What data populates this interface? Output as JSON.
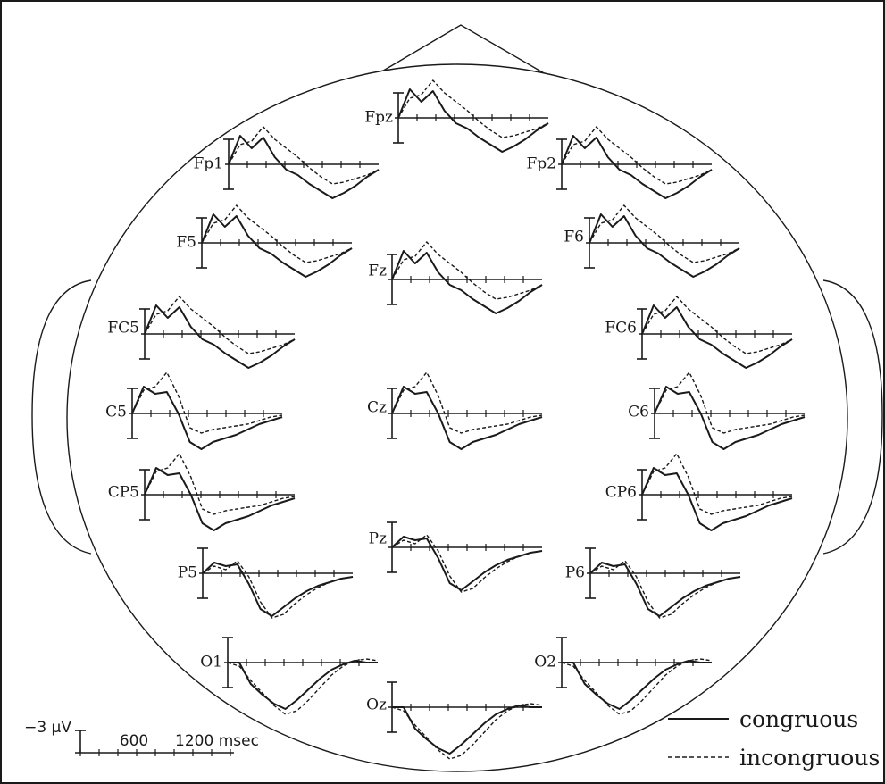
{
  "electrodes": [
    {
      "id": "Fpz",
      "label": "Fpz"
    },
    {
      "id": "Fp1",
      "label": "Fp1"
    },
    {
      "id": "Fp2",
      "label": "Fp2"
    },
    {
      "id": "F5",
      "label": "F5"
    },
    {
      "id": "Fz",
      "label": "Fz"
    },
    {
      "id": "F6",
      "label": "F6"
    },
    {
      "id": "FC5",
      "label": "FC5"
    },
    {
      "id": "FC6",
      "label": "FC6"
    },
    {
      "id": "C5",
      "label": "C5"
    },
    {
      "id": "Cz",
      "label": "Cz"
    },
    {
      "id": "C6",
      "label": "C6"
    },
    {
      "id": "CP5",
      "label": "CP5"
    },
    {
      "id": "CP6",
      "label": "CP6"
    },
    {
      "id": "Pz",
      "label": "Pz"
    },
    {
      "id": "P5",
      "label": "P5"
    },
    {
      "id": "P6",
      "label": "P6"
    },
    {
      "id": "O1",
      "label": "O1"
    },
    {
      "id": "Oz",
      "label": "Oz"
    },
    {
      "id": "O2",
      "label": "O2"
    }
  ],
  "scale_bar": {
    "amplitude_label": "−3 µV",
    "time_label_1": "600",
    "time_label_2": "1200 msec"
  },
  "legend": {
    "congruous": "congruous",
    "incongruous": "incongruous",
    "colors": {
      "line": "#1a1a1a"
    }
  },
  "waveform_shapes": {
    "frontal": {
      "congruous": [
        0.0,
        0.8,
        0.45,
        0.75,
        0.2,
        -0.15,
        -0.3,
        -0.55,
        -0.75,
        -0.95,
        -0.8,
        -0.6,
        -0.35,
        -0.15
      ],
      "incongruous": [
        0.0,
        0.55,
        0.65,
        1.05,
        0.7,
        0.45,
        0.2,
        -0.1,
        -0.35,
        -0.55,
        -0.5,
        -0.4,
        -0.3,
        -0.15
      ]
    },
    "central": {
      "congruous": [
        0.0,
        0.75,
        0.55,
        0.6,
        0.0,
        -0.8,
        -1.0,
        -0.8,
        -0.7,
        -0.6,
        -0.45,
        -0.3,
        -0.2,
        -0.1
      ],
      "incongruous": [
        0.0,
        0.65,
        0.75,
        1.15,
        0.5,
        -0.4,
        -0.55,
        -0.45,
        -0.4,
        -0.35,
        -0.3,
        -0.2,
        -0.1,
        -0.05
      ]
    },
    "parietal": {
      "congruous": [
        0.0,
        0.3,
        0.2,
        0.25,
        -0.3,
        -1.0,
        -1.2,
        -0.95,
        -0.7,
        -0.5,
        -0.35,
        -0.25,
        -0.15,
        -0.1
      ],
      "incongruous": [
        0.0,
        0.2,
        0.1,
        0.35,
        -0.1,
        -0.8,
        -1.25,
        -1.15,
        -0.85,
        -0.6,
        -0.4,
        -0.25,
        -0.15,
        -0.1
      ]
    },
    "occipital": {
      "congruous": [
        0.0,
        0.0,
        -0.6,
        -0.9,
        -1.15,
        -1.3,
        -1.05,
        -0.75,
        -0.45,
        -0.2,
        -0.05,
        0.05,
        0.0,
        0.0
      ],
      "incongruous": [
        0.0,
        -0.1,
        -0.5,
        -0.85,
        -1.2,
        -1.45,
        -1.35,
        -1.05,
        -0.7,
        -0.35,
        -0.1,
        0.05,
        0.1,
        0.05
      ]
    }
  }
}
